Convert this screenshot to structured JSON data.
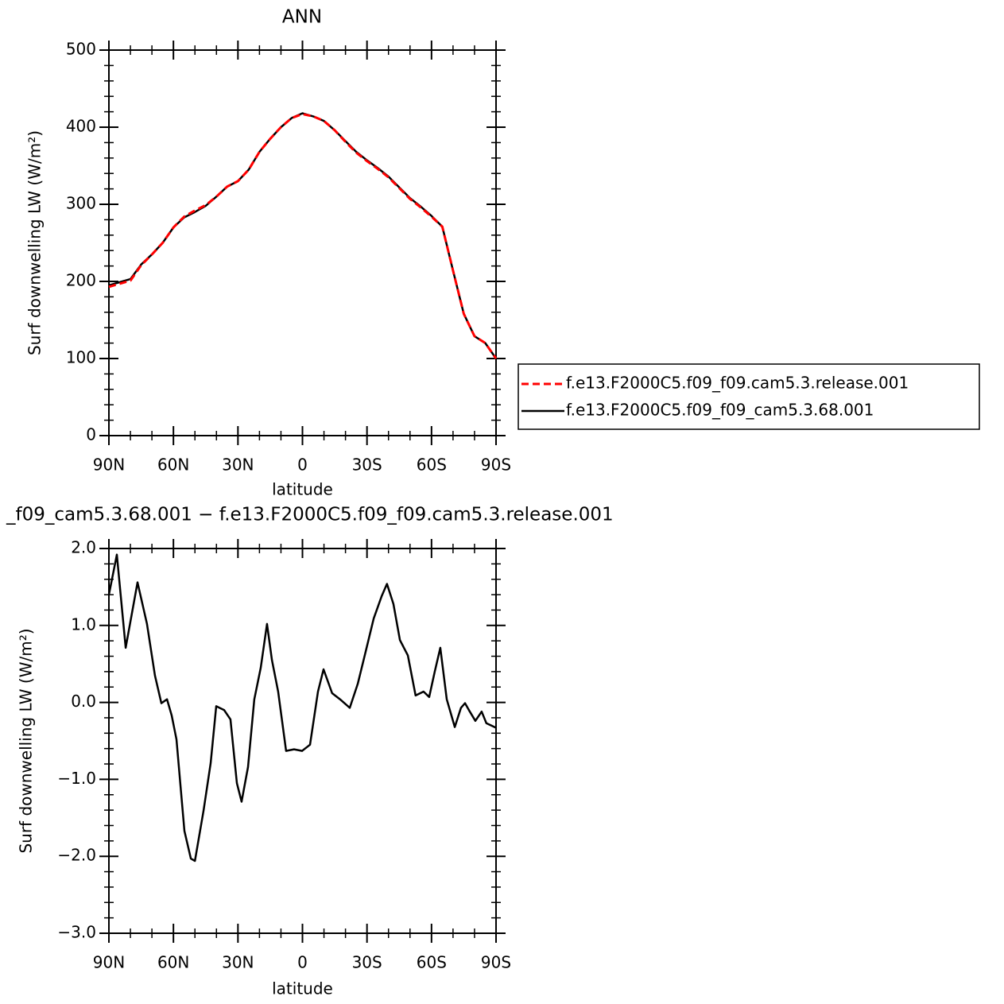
{
  "chart_data": [
    {
      "type": "line",
      "title": "ANN",
      "xlabel": "latitude",
      "ylabel": "Surf downwelling LW (W/m²)",
      "xlim": [
        90,
        -90
      ],
      "ylim": [
        0,
        500
      ],
      "xticks": [
        {
          "value": 90,
          "label": "90N"
        },
        {
          "value": 60,
          "label": "60N"
        },
        {
          "value": 30,
          "label": "30N"
        },
        0,
        {
          "value": -30,
          "label": "30S"
        },
        {
          "value": -60,
          "label": "60S"
        },
        {
          "value": -90,
          "label": "90S"
        }
      ],
      "yticks": [
        0,
        100,
        200,
        300,
        400,
        500
      ],
      "legend": "right",
      "x": [
        90,
        85,
        80,
        75,
        70,
        65,
        60,
        55,
        50,
        45,
        40,
        35,
        30,
        25,
        20,
        15,
        10,
        5,
        0,
        -5,
        -10,
        -15,
        -20,
        -25,
        -30,
        -35,
        -40,
        -45,
        -50,
        -55,
        -60,
        -65,
        -70,
        -75,
        -80,
        -85,
        -90
      ],
      "series": [
        {
          "name": "f.e13.F2000C5.f09_f09.cam5.3.release.001",
          "color": "#ff0000",
          "dash": true,
          "values": [
            193,
            197,
            201,
            221,
            235,
            250,
            270,
            284,
            292,
            299,
            310,
            323,
            330,
            345,
            368,
            385,
            400,
            412,
            417,
            414,
            408,
            396,
            381,
            367,
            356,
            346,
            335,
            321,
            307,
            296,
            284,
            271,
            214,
            158,
            129,
            120,
            100
          ]
        },
        {
          "name": "f.e13.F2000C5.f09_f09_cam5.3.68.001",
          "color": "#000000",
          "dash": false,
          "values": [
            195,
            199,
            203,
            222,
            235,
            250,
            270,
            283,
            290,
            298,
            310,
            323,
            330,
            345,
            368,
            385,
            400,
            412,
            418,
            414,
            408,
            396,
            382,
            368,
            357,
            347,
            336,
            322,
            308,
            297,
            285,
            271,
            214,
            158,
            129,
            120,
            100
          ]
        }
      ]
    },
    {
      "type": "line",
      "title": "_f09_cam5.3.68.001 − f.e13.F2000C5.f09_f09.cam5.3.release.001",
      "xlabel": "latitude",
      "ylabel": "Surf downwelling LW (W/m²)",
      "xlim": [
        90,
        -90
      ],
      "ylim": [
        -3,
        2
      ],
      "xticks": [
        {
          "value": 90,
          "label": "90N"
        },
        {
          "value": 60,
          "label": "60N"
        },
        {
          "value": 30,
          "label": "30N"
        },
        0,
        {
          "value": -30,
          "label": "30S"
        },
        {
          "value": -60,
          "label": "60S"
        },
        {
          "value": -90,
          "label": "90S"
        }
      ],
      "yticks": [
        {
          "value": -3,
          "label": "−3.0"
        },
        {
          "value": -2,
          "label": "−2.0"
        },
        {
          "value": -1,
          "label": "−1.0"
        },
        {
          "value": 0,
          "label": "0.0"
        },
        {
          "value": 1,
          "label": "1.0"
        },
        {
          "value": 2,
          "label": "2.0"
        }
      ],
      "x": [
        90,
        86.3,
        82.2,
        76.7,
        72.3,
        68.6,
        65.6,
        63,
        60.8,
        58.6,
        54.9,
        51.9,
        50,
        46,
        42.7,
        40.1,
        36.4,
        33.5,
        30.5,
        28.3,
        25.3,
        22.4,
        19.4,
        16.5,
        14.2,
        11.3,
        7.6,
        3.9,
        0.2,
        -3.5,
        -7.2,
        -9.8,
        -13.8,
        -17.5,
        -22,
        -25.7,
        -29.4,
        -33.1,
        -36.8,
        -39.3,
        -42.3,
        -45.3,
        -49,
        -52.6,
        -56.3,
        -58.9,
        -61.5,
        -64.1,
        -67.1,
        -70.8,
        -73.7,
        -75.6,
        -77.4,
        -80.4,
        -83.3,
        -85.5,
        -90
      ],
      "series": [
        {
          "color": "#000000",
          "dash": false,
          "values": [
            1.4,
            1.92,
            0.71,
            1.56,
            1.02,
            0.35,
            -0.01,
            0.04,
            -0.17,
            -0.48,
            -1.67,
            -2.03,
            -2.06,
            -1.41,
            -0.79,
            -0.05,
            -0.1,
            -0.22,
            -1.05,
            -1.29,
            -0.84,
            0.04,
            0.45,
            1.02,
            0.55,
            0.14,
            -0.63,
            -0.61,
            -0.63,
            -0.55,
            0.14,
            0.43,
            0.12,
            0.04,
            -0.07,
            0.24,
            0.66,
            1.09,
            1.38,
            1.54,
            1.28,
            0.81,
            0.61,
            0.09,
            0.14,
            0.07,
            0.4,
            0.71,
            0.04,
            -0.32,
            -0.07,
            -0.01,
            -0.1,
            -0.24,
            -0.12,
            -0.27,
            -0.33
          ]
        }
      ]
    }
  ]
}
